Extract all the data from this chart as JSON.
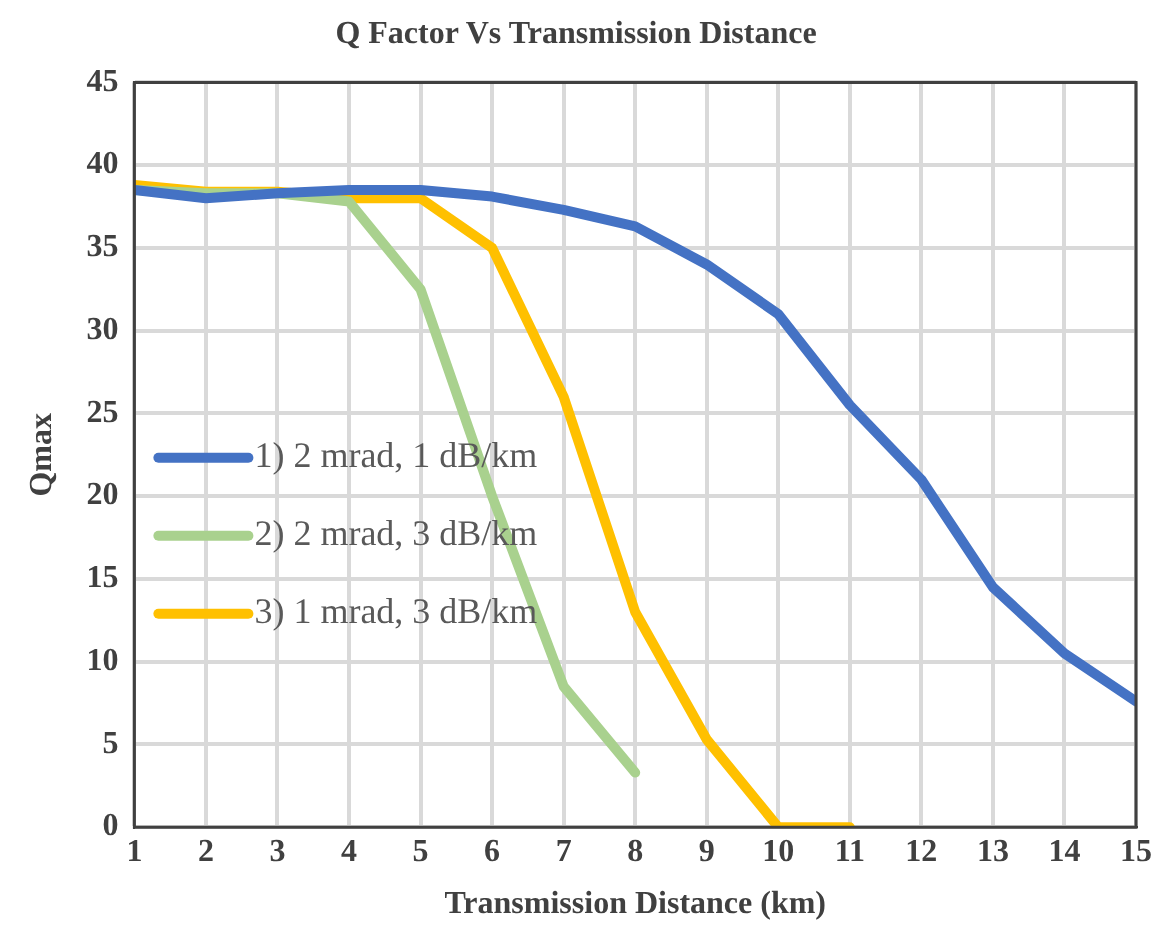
{
  "chart_data": {
    "type": "line",
    "title": "Q Factor Vs Transmission Distance",
    "xlabel": "Transmission Distance (km)",
    "ylabel": "Qmax",
    "xlim": [
      1,
      15
    ],
    "xticks": [
      1,
      2,
      3,
      4,
      5,
      6,
      7,
      8,
      9,
      10,
      11,
      12,
      13,
      14,
      15
    ],
    "ylim": [
      0,
      45
    ],
    "yticks": [
      0,
      5,
      10,
      15,
      20,
      25,
      30,
      35,
      40,
      45
    ],
    "grid": true,
    "legend": "left",
    "marker": "none",
    "line_style": "solid",
    "series": [
      {
        "name": "1) 2 mrad, 1 dB/km",
        "color": "#4472c4",
        "x": [
          1,
          2,
          3,
          4,
          5,
          6,
          7,
          8,
          9,
          10,
          11,
          12,
          13,
          14,
          15
        ],
        "values": [
          38.5,
          38.0,
          38.3,
          38.5,
          38.5,
          38.1,
          37.3,
          36.3,
          34,
          31,
          25.5,
          21,
          14.5,
          10.5,
          7.6
        ]
      },
      {
        "name": "2) 2 mrad, 3 dB/km",
        "color": "#a9d18e",
        "x": [
          1,
          2,
          3,
          4,
          5,
          6,
          7,
          8
        ],
        "values": [
          38.5,
          38.3,
          38.3,
          37.8,
          32.5,
          20,
          8.5,
          3.3
        ]
      },
      {
        "name": "3) 1 mrad, 3 dB/km",
        "color": "#ffc000",
        "x": [
          1,
          2,
          3,
          4,
          5,
          6,
          7,
          8,
          9,
          10,
          11
        ],
        "values": [
          38.8,
          38.4,
          38.4,
          38,
          38,
          35,
          26,
          13,
          5.3,
          0,
          0
        ]
      }
    ]
  }
}
